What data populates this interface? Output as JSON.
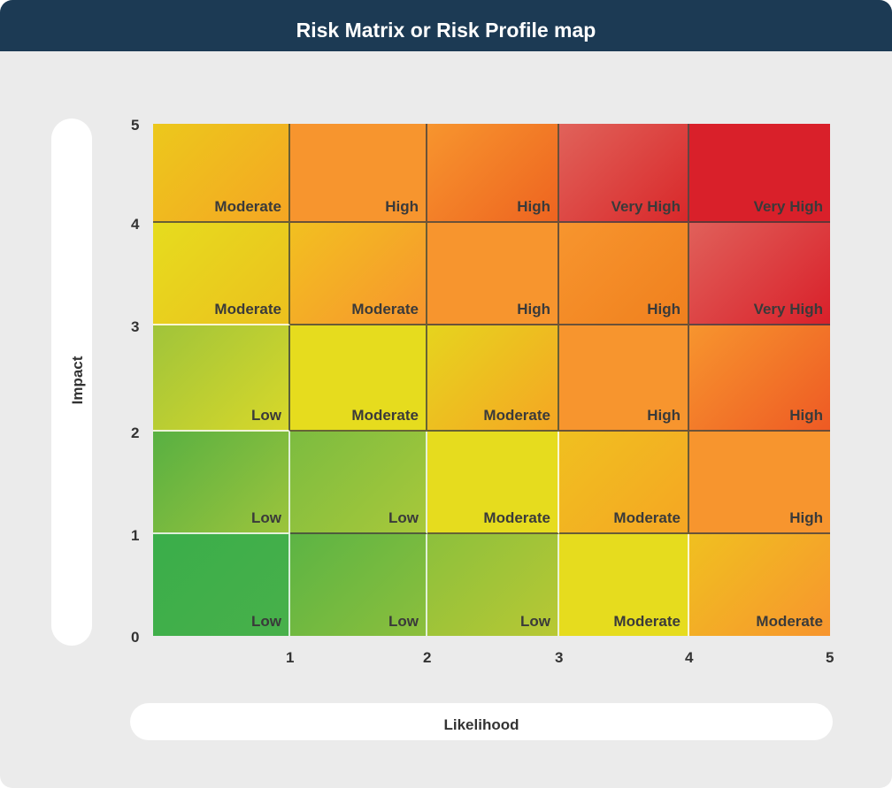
{
  "title": "Risk Matrix or Risk Profile map",
  "chart_data": {
    "type": "heatmap",
    "title": "Risk Matrix or Risk Profile map",
    "xlabel": "Likelihood",
    "ylabel": "Impact",
    "x_ticks": [
      "1",
      "2",
      "3",
      "4",
      "5"
    ],
    "y_ticks": [
      "0",
      "1",
      "2",
      "3",
      "4",
      "5"
    ],
    "xlim": [
      0,
      5
    ],
    "ylim": [
      0,
      5
    ],
    "rows": [
      {
        "impact": 5,
        "cells": [
          "Moderate",
          "High",
          "High",
          "Very High",
          "Very High"
        ]
      },
      {
        "impact": 4,
        "cells": [
          "Moderate",
          "Moderate",
          "High",
          "High",
          "Very High"
        ]
      },
      {
        "impact": 3,
        "cells": [
          "Low",
          "Moderate",
          "Moderate",
          "High",
          "High"
        ]
      },
      {
        "impact": 2,
        "cells": [
          "Low",
          "Low",
          "Moderate",
          "Moderate",
          "High"
        ]
      },
      {
        "impact": 1,
        "cells": [
          "Low",
          "Low",
          "Low",
          "Moderate",
          "Moderate"
        ]
      }
    ],
    "colors": [
      [
        [
          "#ecc81c",
          "#f5a623"
        ],
        [
          "#f7952e",
          "#f7952e"
        ],
        [
          "#f7952e",
          "#ee6420"
        ],
        [
          "#e0625a",
          "#d9282a"
        ],
        [
          "#d9202a",
          "#d9202a"
        ]
      ],
      [
        [
          "#e6dc1e",
          "#ecc01e"
        ],
        [
          "#f2c020",
          "#f7952e"
        ],
        [
          "#f7952e",
          "#f7952e"
        ],
        [
          "#f7952e",
          "#f0801e"
        ],
        [
          "#e0605a",
          "#d9202a"
        ]
      ],
      [
        [
          "#a0c43a",
          "#d8d82a"
        ],
        [
          "#e6dc1e",
          "#e6dc1e"
        ],
        [
          "#e6d41e",
          "#f5a623"
        ],
        [
          "#f7952e",
          "#f7952e"
        ],
        [
          "#f7952e",
          "#ee5a24"
        ]
      ],
      [
        [
          "#58b042",
          "#9cc43c"
        ],
        [
          "#7cbc40",
          "#a8c83a"
        ],
        [
          "#e6dc1e",
          "#e6dc1e"
        ],
        [
          "#f0c020",
          "#f5a623"
        ],
        [
          "#f7952e",
          "#f7952e"
        ]
      ],
      [
        [
          "#3aae4a",
          "#48b04a"
        ],
        [
          "#5cb444",
          "#8cbf3c"
        ],
        [
          "#8cc03c",
          "#b8c834"
        ],
        [
          "#e6dc1e",
          "#e6dc1e"
        ],
        [
          "#f0c020",
          "#f7952e"
        ]
      ]
    ]
  }
}
